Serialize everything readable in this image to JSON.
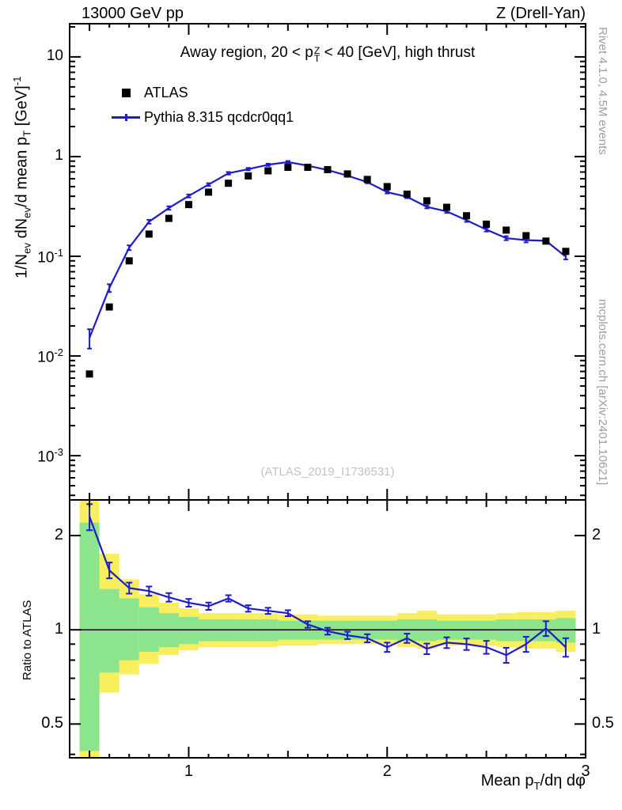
{
  "header": {
    "left": "13000 GeV pp",
    "right": "Z (Drell-Yan)"
  },
  "plot_title": {
    "pre": "Away region, 20 < p",
    "sup": "Z",
    "sub": "T",
    "post": " < 40 [GeV], high thrust"
  },
  "legend": {
    "atlas": "ATLAS",
    "pythia": "Pythia 8.315 qcdcr0qq1"
  },
  "watermark": "(ATLAS_2019_I1736531)",
  "side_labels": {
    "rivet": "Rivet 4.1.0,  4.5M events",
    "mcplots": "mcplots.cern.ch [arXiv:2401.10621]"
  },
  "axis_labels": {
    "y_main": {
      "p1": "1/N",
      "s1": "ev",
      "p2": " dN",
      "s2": "ev",
      "p3": "/d mean p",
      "s3": "T",
      "p4": " [GeV]",
      "exp": "-1"
    },
    "y_ratio": "Ratio to ATLAS",
    "x": {
      "p1": "Mean p",
      "s1": "T",
      "p2": "/dη dφ"
    }
  },
  "colors": {
    "pythia": "#1c1ccc",
    "atlas": "#000000",
    "band_outer": "#f9ef5e",
    "band_inner": "#8ce48c",
    "frame": "#000000",
    "side_text": "#9e9e9e",
    "watermark": "#c2c2c2"
  },
  "chart_data": [
    {
      "type": "line",
      "panel": "main",
      "title": "Away region, 20 < pT^Z < 40 [GeV], high thrust",
      "xlabel": "Mean pT/dη dφ",
      "ylabel": "1/Nev dNev/d mean pT [GeV]^-1",
      "xscale": "linear",
      "xlim": [
        0.4,
        3.0
      ],
      "yscale": "log",
      "ylim": [
        0.00036,
        21.5
      ],
      "grid": false,
      "legend_position": "top-left",
      "x_ticks": [
        {
          "v": 1,
          "t": "1"
        },
        {
          "v": 2,
          "t": "2"
        },
        {
          "v": 3,
          "t": "3"
        }
      ],
      "y_ticks": [
        {
          "v": 10,
          "base": "10",
          "exp": ""
        },
        {
          "v": 1,
          "base": "1",
          "exp": ""
        },
        {
          "v": 0.1,
          "base": "10",
          "exp": "-1"
        },
        {
          "v": 0.01,
          "base": "10",
          "exp": "-2"
        },
        {
          "v": 0.001,
          "base": "10",
          "exp": "-3"
        }
      ],
      "x": [
        0.5,
        0.6,
        0.7,
        0.8,
        0.9,
        1.0,
        1.1,
        1.2,
        1.3,
        1.4,
        1.5,
        1.6,
        1.7,
        1.8,
        1.9,
        2.0,
        2.1,
        2.2,
        2.3,
        2.4,
        2.5,
        2.6,
        2.7,
        2.8,
        2.9
      ],
      "series": [
        {
          "name": "ATLAS",
          "style": "scatter-square",
          "color_key": "atlas",
          "values": [
            0.0066,
            0.031,
            0.09,
            0.167,
            0.24,
            0.33,
            0.44,
            0.54,
            0.64,
            0.72,
            0.78,
            0.78,
            0.74,
            0.67,
            0.59,
            0.5,
            0.42,
            0.36,
            0.31,
            0.255,
            0.21,
            0.183,
            0.161,
            0.142,
            0.112
          ]
        },
        {
          "name": "Pythia 8.315 qcdcr0qq1",
          "style": "line",
          "color_key": "pythia",
          "values": [
            0.0152,
            0.0481,
            0.122,
            0.222,
            0.305,
            0.403,
            0.524,
            0.68,
            0.749,
            0.828,
            0.881,
            0.811,
            0.733,
            0.643,
            0.555,
            0.44,
            0.395,
            0.313,
            0.282,
            0.23,
            0.185,
            0.152,
            0.145,
            0.143,
            0.099
          ],
          "err_frac": [
            0.22,
            0.09,
            0.055,
            0.045,
            0.04,
            0.035,
            0.032,
            0.03,
            0.028,
            0.026,
            0.025,
            0.025,
            0.025,
            0.026,
            0.028,
            0.03,
            0.032,
            0.034,
            0.036,
            0.038,
            0.042,
            0.046,
            0.05,
            0.055,
            0.06
          ]
        }
      ]
    },
    {
      "type": "line",
      "panel": "ratio",
      "ylabel": "Ratio to ATLAS",
      "yscale": "log",
      "ylim": [
        0.39,
        2.6
      ],
      "reference_line": 1,
      "bin_halfwidth": 0.05,
      "y_ticks": [
        {
          "v": 2,
          "t": "2"
        },
        {
          "v": 1,
          "t": "1"
        },
        {
          "v": 0.5,
          "t": "0.5"
        }
      ],
      "y_minor_ticks": [
        0.4,
        0.6,
        0.7,
        0.8,
        0.9
      ],
      "x": [
        0.5,
        0.6,
        0.7,
        0.8,
        0.9,
        1.0,
        1.1,
        1.2,
        1.3,
        1.4,
        1.5,
        1.6,
        1.7,
        1.8,
        1.9,
        2.0,
        2.1,
        2.2,
        2.3,
        2.4,
        2.5,
        2.6,
        2.7,
        2.8,
        2.9
      ],
      "series": [
        {
          "name": "Pythia 8.315 qcdcr0qq1 / ATLAS",
          "style": "line",
          "color_key": "pythia",
          "values": [
            2.3,
            1.55,
            1.36,
            1.33,
            1.27,
            1.22,
            1.19,
            1.26,
            1.17,
            1.15,
            1.13,
            1.04,
            0.99,
            0.96,
            0.94,
            0.88,
            0.94,
            0.87,
            0.91,
            0.9,
            0.88,
            0.83,
            0.9,
            1.01,
            0.88
          ],
          "errors": [
            0.22,
            0.09,
            0.055,
            0.045,
            0.04,
            0.035,
            0.032,
            0.03,
            0.028,
            0.026,
            0.025,
            0.025,
            0.025,
            0.026,
            0.028,
            0.03,
            0.032,
            0.034,
            0.036,
            0.038,
            0.042,
            0.046,
            0.05,
            0.055,
            0.06
          ]
        }
      ],
      "bands": {
        "outer": {
          "label": "ATLAS uncertainty (outer band)",
          "color_key": "band_outer",
          "lo": [
            0.39,
            0.63,
            0.72,
            0.78,
            0.83,
            0.86,
            0.88,
            0.88,
            0.88,
            0.88,
            0.89,
            0.89,
            0.9,
            0.9,
            0.9,
            0.9,
            0.88,
            0.87,
            0.89,
            0.89,
            0.89,
            0.88,
            0.87,
            0.87,
            0.85
          ],
          "hi": [
            2.6,
            1.75,
            1.45,
            1.3,
            1.22,
            1.17,
            1.13,
            1.13,
            1.13,
            1.13,
            1.12,
            1.12,
            1.11,
            1.11,
            1.11,
            1.11,
            1.13,
            1.15,
            1.12,
            1.12,
            1.12,
            1.13,
            1.14,
            1.14,
            1.15
          ]
        },
        "inner": {
          "label": "ATLAS uncertainty (inner band)",
          "color_key": "band_inner",
          "lo": [
            0.41,
            0.73,
            0.8,
            0.85,
            0.88,
            0.9,
            0.92,
            0.92,
            0.92,
            0.92,
            0.93,
            0.93,
            0.93,
            0.93,
            0.93,
            0.93,
            0.92,
            0.92,
            0.93,
            0.93,
            0.93,
            0.92,
            0.92,
            0.92,
            0.91
          ],
          "hi": [
            2.2,
            1.35,
            1.26,
            1.18,
            1.13,
            1.1,
            1.08,
            1.08,
            1.08,
            1.08,
            1.07,
            1.07,
            1.07,
            1.07,
            1.07,
            1.07,
            1.08,
            1.08,
            1.07,
            1.07,
            1.07,
            1.08,
            1.08,
            1.08,
            1.09
          ]
        }
      }
    }
  ]
}
